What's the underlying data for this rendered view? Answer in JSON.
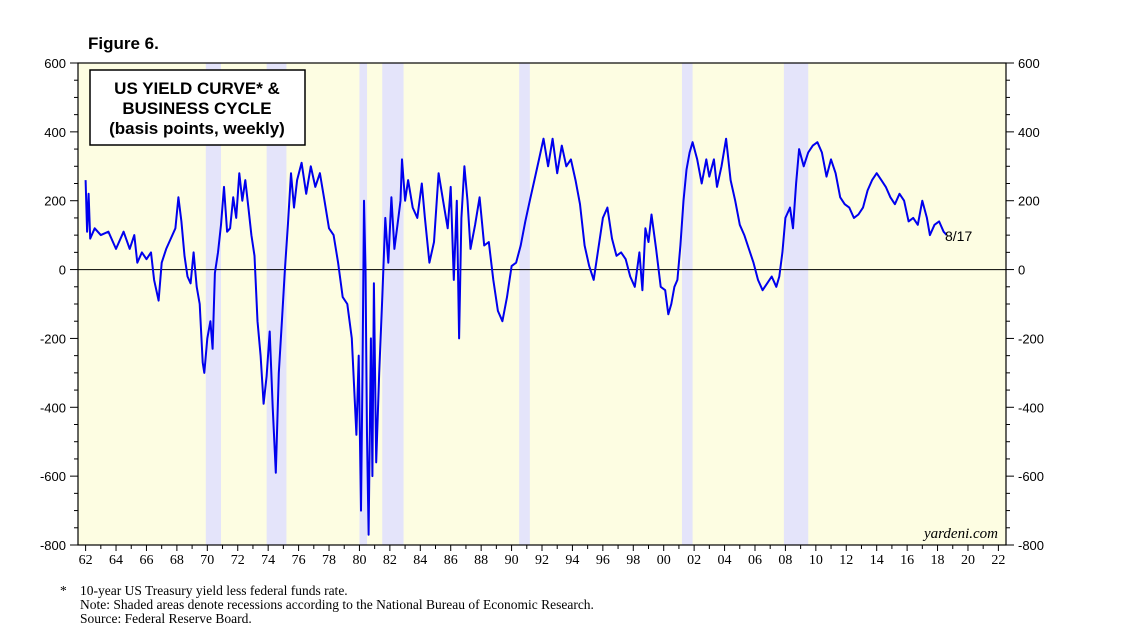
{
  "figure_label": "Figure 6.",
  "title_lines": [
    "US YIELD CURVE* &",
    "BUSINESS CYCLE",
    "(basis points, weekly)"
  ],
  "watermark": "yardeni.com",
  "end_label": "8/17",
  "footnotes": {
    "marker": "*",
    "definition": "10-year US Treasury yield less federal funds rate.",
    "note": "Note: Shaded areas denote recessions according to the National Bureau of Economic Research.",
    "source": "Source: Federal Reserve Board."
  },
  "colors": {
    "plot_background": "#fdfde2",
    "recession_shade": "#e4e4fa",
    "series_line": "#0000ee",
    "axis": "#000000"
  },
  "chart_data": {
    "type": "line",
    "title": "US YIELD CURVE* & BUSINESS CYCLE (basis points, weekly)",
    "x_range": [
      1961.5,
      2022.5
    ],
    "ylim": [
      -800,
      600
    ],
    "y_ticks": [
      -800,
      -600,
      -400,
      -200,
      0,
      200,
      400,
      600
    ],
    "y_tick_labels": [
      "-800",
      "-600",
      "-400",
      "-200",
      "0",
      "200",
      "400",
      "600"
    ],
    "x_ticks": [
      1962,
      1964,
      1966,
      1968,
      1970,
      1972,
      1974,
      1976,
      1978,
      1980,
      1982,
      1984,
      1986,
      1988,
      1990,
      1992,
      1994,
      1996,
      1998,
      2000,
      2002,
      2004,
      2006,
      2008,
      2010,
      2012,
      2014,
      2016,
      2018,
      2020,
      2022
    ],
    "x_tick_labels": [
      "62",
      "64",
      "66",
      "68",
      "70",
      "72",
      "74",
      "76",
      "78",
      "80",
      "82",
      "84",
      "86",
      "88",
      "90",
      "92",
      "94",
      "96",
      "98",
      "00",
      "02",
      "04",
      "06",
      "08",
      "10",
      "12",
      "14",
      "16",
      "18",
      "20",
      "22"
    ],
    "zero_line": true,
    "recessions": [
      [
        1969.9,
        1970.9
      ],
      [
        1973.9,
        1975.2
      ],
      [
        1980.0,
        1980.5
      ],
      [
        1981.5,
        1982.9
      ],
      [
        1990.5,
        1991.2
      ],
      [
        2001.2,
        2001.9
      ],
      [
        2007.9,
        2009.5
      ]
    ],
    "series": [
      {
        "values": [
          [
            1962.0,
            260
          ],
          [
            1962.1,
            110
          ],
          [
            1962.2,
            220
          ],
          [
            1962.3,
            90
          ],
          [
            1962.6,
            120
          ],
          [
            1963.0,
            100
          ],
          [
            1963.5,
            110
          ],
          [
            1964.0,
            60
          ],
          [
            1964.5,
            110
          ],
          [
            1964.9,
            60
          ],
          [
            1965.2,
            100
          ],
          [
            1965.4,
            20
          ],
          [
            1965.7,
            50
          ],
          [
            1966.0,
            30
          ],
          [
            1966.3,
            50
          ],
          [
            1966.5,
            -30
          ],
          [
            1966.8,
            -90
          ],
          [
            1967.0,
            20
          ],
          [
            1967.3,
            60
          ],
          [
            1967.6,
            90
          ],
          [
            1967.9,
            120
          ],
          [
            1968.1,
            210
          ],
          [
            1968.3,
            140
          ],
          [
            1968.5,
            40
          ],
          [
            1968.7,
            -20
          ],
          [
            1968.9,
            -40
          ],
          [
            1969.1,
            50
          ],
          [
            1969.3,
            -50
          ],
          [
            1969.5,
            -100
          ],
          [
            1969.7,
            -270
          ],
          [
            1969.8,
            -300
          ],
          [
            1970.0,
            -200
          ],
          [
            1970.2,
            -150
          ],
          [
            1970.35,
            -230
          ],
          [
            1970.5,
            -10
          ],
          [
            1970.7,
            50
          ],
          [
            1970.9,
            130
          ],
          [
            1971.1,
            240
          ],
          [
            1971.3,
            110
          ],
          [
            1971.5,
            120
          ],
          [
            1971.7,
            210
          ],
          [
            1971.9,
            150
          ],
          [
            1972.1,
            280
          ],
          [
            1972.3,
            200
          ],
          [
            1972.5,
            260
          ],
          [
            1972.7,
            180
          ],
          [
            1972.9,
            100
          ],
          [
            1973.1,
            40
          ],
          [
            1973.3,
            -150
          ],
          [
            1973.5,
            -250
          ],
          [
            1973.7,
            -390
          ],
          [
            1973.9,
            -310
          ],
          [
            1974.1,
            -180
          ],
          [
            1974.3,
            -400
          ],
          [
            1974.5,
            -590
          ],
          [
            1974.7,
            -300
          ],
          [
            1974.9,
            -150
          ],
          [
            1975.1,
            0
          ],
          [
            1975.3,
            130
          ],
          [
            1975.5,
            280
          ],
          [
            1975.7,
            180
          ],
          [
            1975.9,
            260
          ],
          [
            1976.2,
            310
          ],
          [
            1976.5,
            220
          ],
          [
            1976.8,
            300
          ],
          [
            1977.1,
            240
          ],
          [
            1977.4,
            280
          ],
          [
            1977.7,
            200
          ],
          [
            1978.0,
            120
          ],
          [
            1978.3,
            100
          ],
          [
            1978.6,
            20
          ],
          [
            1978.9,
            -80
          ],
          [
            1979.2,
            -100
          ],
          [
            1979.5,
            -200
          ],
          [
            1979.8,
            -480
          ],
          [
            1979.95,
            -250
          ],
          [
            1980.1,
            -700
          ],
          [
            1980.2,
            -300
          ],
          [
            1980.3,
            200
          ],
          [
            1980.4,
            0
          ],
          [
            1980.5,
            -480
          ],
          [
            1980.6,
            -770
          ],
          [
            1980.75,
            -200
          ],
          [
            1980.85,
            -600
          ],
          [
            1980.95,
            -40
          ],
          [
            1981.1,
            -560
          ],
          [
            1981.3,
            -300
          ],
          [
            1981.5,
            -80
          ],
          [
            1981.7,
            150
          ],
          [
            1981.9,
            20
          ],
          [
            1982.1,
            210
          ],
          [
            1982.3,
            60
          ],
          [
            1982.5,
            130
          ],
          [
            1982.7,
            200
          ],
          [
            1982.8,
            320
          ],
          [
            1983.0,
            200
          ],
          [
            1983.2,
            260
          ],
          [
            1983.5,
            180
          ],
          [
            1983.8,
            150
          ],
          [
            1984.1,
            250
          ],
          [
            1984.3,
            150
          ],
          [
            1984.6,
            20
          ],
          [
            1984.9,
            80
          ],
          [
            1985.2,
            280
          ],
          [
            1985.5,
            200
          ],
          [
            1985.8,
            120
          ],
          [
            1986.0,
            240
          ],
          [
            1986.2,
            -30
          ],
          [
            1986.4,
            200
          ],
          [
            1986.55,
            -200
          ],
          [
            1986.7,
            150
          ],
          [
            1986.9,
            300
          ],
          [
            1987.1,
            200
          ],
          [
            1987.3,
            60
          ],
          [
            1987.6,
            130
          ],
          [
            1987.9,
            210
          ],
          [
            1988.2,
            70
          ],
          [
            1988.5,
            80
          ],
          [
            1988.8,
            -30
          ],
          [
            1989.1,
            -120
          ],
          [
            1989.4,
            -150
          ],
          [
            1989.7,
            -80
          ],
          [
            1990.0,
            10
          ],
          [
            1990.3,
            20
          ],
          [
            1990.6,
            70
          ],
          [
            1990.9,
            140
          ],
          [
            1991.2,
            200
          ],
          [
            1991.5,
            260
          ],
          [
            1991.8,
            320
          ],
          [
            1992.1,
            380
          ],
          [
            1992.4,
            300
          ],
          [
            1992.7,
            380
          ],
          [
            1993.0,
            280
          ],
          [
            1993.3,
            360
          ],
          [
            1993.6,
            300
          ],
          [
            1993.9,
            320
          ],
          [
            1994.2,
            260
          ],
          [
            1994.5,
            190
          ],
          [
            1994.8,
            70
          ],
          [
            1995.1,
            10
          ],
          [
            1995.4,
            -30
          ],
          [
            1995.7,
            60
          ],
          [
            1996.0,
            150
          ],
          [
            1996.3,
            180
          ],
          [
            1996.6,
            90
          ],
          [
            1996.9,
            40
          ],
          [
            1997.2,
            50
          ],
          [
            1997.5,
            30
          ],
          [
            1997.8,
            -20
          ],
          [
            1998.1,
            -50
          ],
          [
            1998.4,
            50
          ],
          [
            1998.6,
            -60
          ],
          [
            1998.8,
            120
          ],
          [
            1999.0,
            80
          ],
          [
            1999.2,
            160
          ],
          [
            1999.5,
            60
          ],
          [
            1999.8,
            -50
          ],
          [
            2000.1,
            -60
          ],
          [
            2000.3,
            -130
          ],
          [
            2000.5,
            -100
          ],
          [
            2000.7,
            -50
          ],
          [
            2000.9,
            -30
          ],
          [
            2001.1,
            70
          ],
          [
            2001.3,
            200
          ],
          [
            2001.5,
            290
          ],
          [
            2001.7,
            340
          ],
          [
            2001.9,
            370
          ],
          [
            2002.2,
            320
          ],
          [
            2002.5,
            250
          ],
          [
            2002.8,
            320
          ],
          [
            2003.0,
            270
          ],
          [
            2003.3,
            320
          ],
          [
            2003.5,
            240
          ],
          [
            2003.8,
            300
          ],
          [
            2004.1,
            380
          ],
          [
            2004.4,
            260
          ],
          [
            2004.7,
            200
          ],
          [
            2005.0,
            130
          ],
          [
            2005.3,
            100
          ],
          [
            2005.6,
            60
          ],
          [
            2005.9,
            20
          ],
          [
            2006.2,
            -30
          ],
          [
            2006.5,
            -60
          ],
          [
            2006.8,
            -40
          ],
          [
            2007.1,
            -20
          ],
          [
            2007.4,
            -50
          ],
          [
            2007.6,
            -20
          ],
          [
            2007.8,
            50
          ],
          [
            2008.0,
            150
          ],
          [
            2008.3,
            180
          ],
          [
            2008.5,
            120
          ],
          [
            2008.7,
            250
          ],
          [
            2008.9,
            350
          ],
          [
            2009.2,
            300
          ],
          [
            2009.5,
            340
          ],
          [
            2009.8,
            360
          ],
          [
            2010.1,
            370
          ],
          [
            2010.4,
            340
          ],
          [
            2010.7,
            270
          ],
          [
            2011.0,
            320
          ],
          [
            2011.3,
            280
          ],
          [
            2011.6,
            210
          ],
          [
            2011.9,
            190
          ],
          [
            2012.2,
            180
          ],
          [
            2012.5,
            150
          ],
          [
            2012.8,
            160
          ],
          [
            2013.1,
            180
          ],
          [
            2013.4,
            230
          ],
          [
            2013.7,
            260
          ],
          [
            2014.0,
            280
          ],
          [
            2014.3,
            260
          ],
          [
            2014.6,
            240
          ],
          [
            2014.9,
            210
          ],
          [
            2015.2,
            190
          ],
          [
            2015.5,
            220
          ],
          [
            2015.8,
            200
          ],
          [
            2016.1,
            140
          ],
          [
            2016.4,
            150
          ],
          [
            2016.7,
            130
          ],
          [
            2017.0,
            200
          ],
          [
            2017.3,
            150
          ],
          [
            2017.5,
            100
          ],
          [
            2017.8,
            130
          ],
          [
            2018.1,
            140
          ],
          [
            2018.4,
            110
          ],
          [
            2018.6,
            100
          ]
        ]
      }
    ]
  }
}
